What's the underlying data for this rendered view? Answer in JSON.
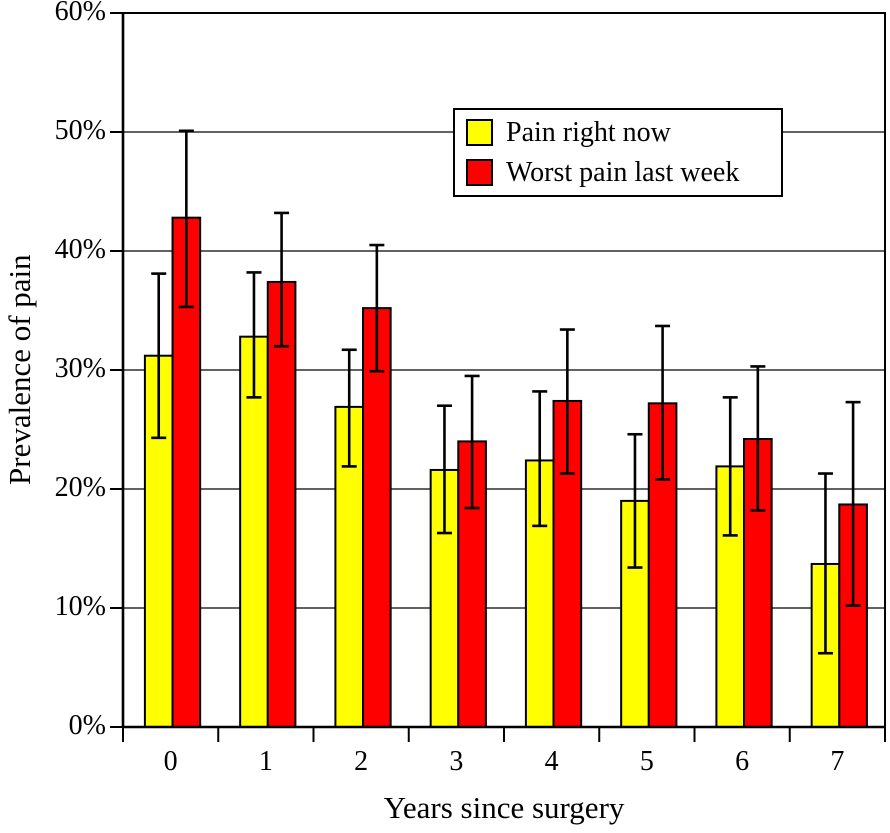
{
  "chart_data": {
    "type": "bar",
    "title": "",
    "xlabel": "Years since surgery",
    "ylabel": "Prevalence of pain",
    "categories": [
      "0",
      "1",
      "2",
      "3",
      "4",
      "5",
      "6",
      "7"
    ],
    "ylim": [
      0,
      60
    ],
    "ytick_step": 10,
    "ytick_labels": [
      "0%",
      "10%",
      "20%",
      "30%",
      "40%",
      "50%",
      "60%"
    ],
    "grid": true,
    "legend_position": "inside-top-right",
    "error_bars": true,
    "series": [
      {
        "name": "Pain right now",
        "color": "#ffff00",
        "values": [
          31.2,
          32.8,
          26.9,
          21.6,
          22.4,
          19.0,
          21.9,
          13.7
        ],
        "err_lo": [
          24.3,
          27.7,
          21.9,
          16.3,
          16.9,
          13.4,
          16.1,
          6.2
        ],
        "err_hi": [
          38.1,
          38.2,
          31.7,
          27.0,
          28.2,
          24.6,
          27.7,
          21.3
        ]
      },
      {
        "name": "Worst pain last week",
        "color": "#ff0000",
        "values": [
          42.8,
          37.4,
          35.2,
          24.0,
          27.4,
          27.2,
          24.2,
          18.7
        ],
        "err_lo": [
          35.3,
          32.0,
          29.9,
          18.4,
          21.3,
          20.8,
          18.2,
          10.2
        ],
        "err_hi": [
          50.1,
          43.2,
          40.5,
          29.5,
          33.4,
          33.7,
          30.3,
          27.3
        ]
      }
    ],
    "colors": {
      "bar_outline": "#000000",
      "gridline": "#2e2e2e",
      "axis": "#000000",
      "background": "#ffffff"
    }
  }
}
